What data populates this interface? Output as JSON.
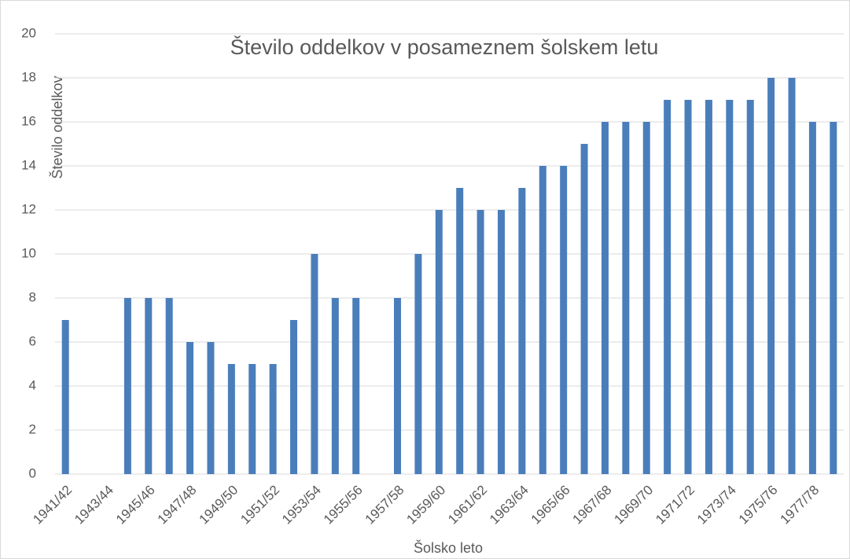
{
  "chart_data": {
    "type": "bar",
    "title": "Število oddelkov v posameznem šolskem letu",
    "x_label": "Šolsko leto",
    "y_label": "Število oddelkov",
    "categories": [
      "1941/42",
      null,
      "1943/44",
      null,
      "1945/46",
      null,
      "1947/48",
      null,
      "1949/50",
      null,
      "1951/52",
      null,
      "1953/54",
      null,
      "1955/56",
      null,
      "1957/58",
      null,
      "1959/60",
      null,
      "1961/62",
      null,
      "1963/64",
      null,
      "1965/66",
      null,
      "1967/68",
      null,
      "1969/70",
      null,
      "1971/72",
      null,
      "1973/74",
      null,
      "1975/76",
      null,
      "1977/78",
      null
    ],
    "values": [
      7,
      null,
      null,
      8,
      8,
      8,
      6,
      6,
      5,
      5,
      5,
      7,
      10,
      8,
      8,
      null,
      8,
      10,
      12,
      13,
      12,
      12,
      13,
      14,
      14,
      15,
      16,
      16,
      16,
      17,
      17,
      17,
      17,
      17,
      18,
      18,
      16,
      16
    ],
    "color": "#4a7ebb",
    "ylim": [
      0,
      20
    ],
    "yticks": [
      0,
      2,
      4,
      6,
      8,
      10,
      12,
      14,
      16,
      18,
      20
    ],
    "grid": true
  }
}
